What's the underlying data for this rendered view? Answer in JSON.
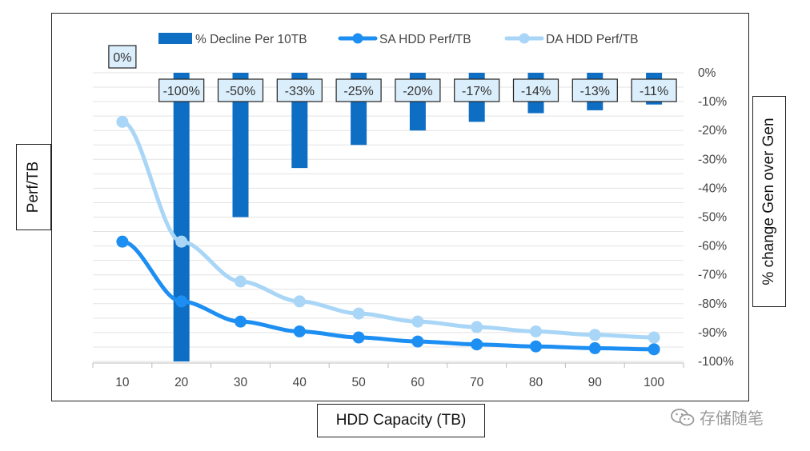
{
  "chart_data": {
    "type": "bar+line",
    "categories": [
      "10",
      "20",
      "30",
      "40",
      "50",
      "60",
      "70",
      "80",
      "90",
      "100"
    ],
    "xlabel": "HDD Capacity (TB)",
    "ylabel_left": "Perf/TB",
    "ylabel_right": "% change Gen over Gen",
    "right_axis": {
      "range": [
        -100,
        0
      ],
      "ticks": [
        "0%",
        "-10%",
        "-20%",
        "-30%",
        "-40%",
        "-50%",
        "-60%",
        "-70%",
        "-80%",
        "-90%",
        "-100%"
      ]
    },
    "left_axis": {
      "range": [
        0,
        1
      ],
      "labels_shown": false
    },
    "series": [
      {
        "name": "% Decline Per 10TB",
        "type": "bar",
        "axis": "right",
        "color": "#0E6EC4",
        "values": [
          0,
          -100,
          -50,
          -33,
          -25,
          -20,
          -17,
          -14,
          -13,
          -11
        ],
        "data_labels": [
          "0%",
          "-100%",
          "-50%",
          "-33%",
          "-25%",
          "-20%",
          "-17%",
          "-14%",
          "-13%",
          "-11%"
        ]
      },
      {
        "name": "SA HDD Perf/TB",
        "type": "line",
        "axis": "left",
        "color": "#1E8FF2",
        "values": [
          0.415,
          0.208,
          0.138,
          0.104,
          0.083,
          0.069,
          0.059,
          0.052,
          0.046,
          0.042
        ]
      },
      {
        "name": "DA HDD Perf/TB",
        "type": "line",
        "axis": "left",
        "color": "#A9D6F7",
        "values": [
          0.83,
          0.415,
          0.277,
          0.208,
          0.166,
          0.138,
          0.119,
          0.104,
          0.092,
          0.083
        ]
      }
    ],
    "legend_position": "top",
    "grid": true
  },
  "watermark": {
    "text": "存储随笔",
    "icon": "wechat-icon"
  }
}
